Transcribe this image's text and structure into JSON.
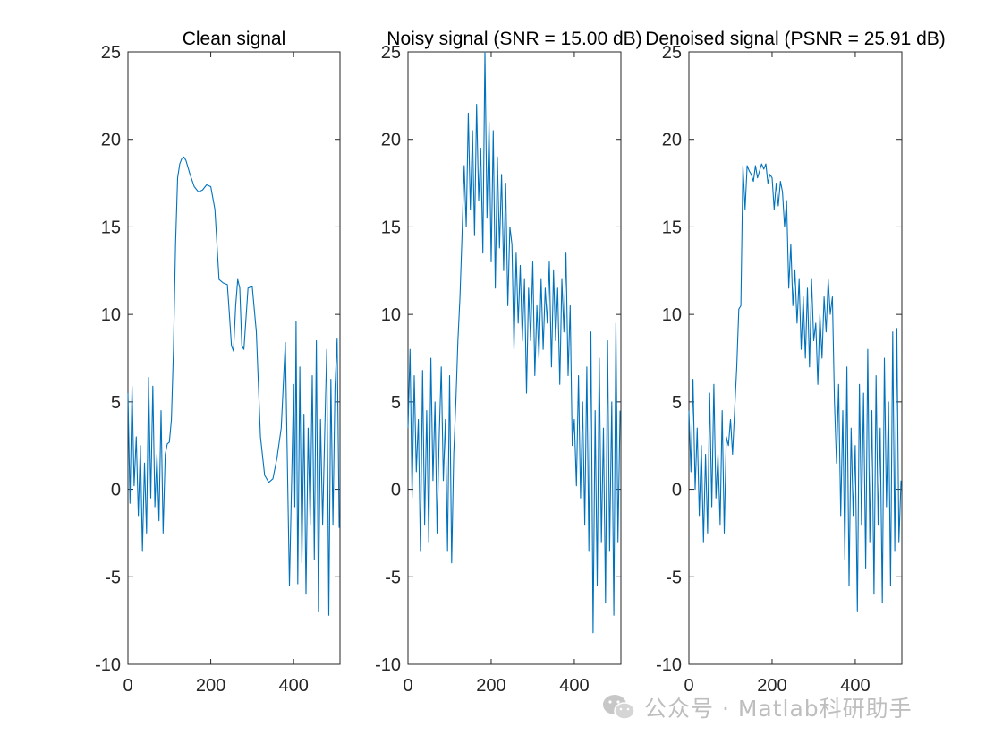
{
  "colors": {
    "series": "#0072BD",
    "axis": "#262626",
    "background": "#ffffff"
  },
  "chart_data": [
    {
      "type": "line",
      "title": "Clean signal",
      "xlim": [
        0,
        512
      ],
      "ylim": [
        -10,
        25
      ],
      "xticks": [
        0,
        200,
        400
      ],
      "yticks": [
        -10,
        -5,
        0,
        5,
        10,
        15,
        20,
        25
      ],
      "grid": false,
      "series": [
        {
          "x": [
            0,
            5,
            10,
            15,
            20,
            25,
            30,
            35,
            40,
            45,
            50,
            55,
            60,
            65,
            70,
            75,
            80,
            85,
            90,
            95,
            100,
            105,
            110,
            115,
            120,
            125,
            130,
            135,
            140,
            150,
            160,
            170,
            180,
            190,
            200,
            210,
            220,
            230,
            240,
            245,
            250,
            255,
            260,
            265,
            270,
            275,
            280,
            290,
            300,
            310,
            320,
            330,
            340,
            350,
            360,
            370,
            380,
            390,
            400,
            403,
            406,
            410,
            415,
            420,
            425,
            430,
            435,
            440,
            445,
            450,
            455,
            460,
            465,
            470,
            475,
            480,
            485,
            490,
            495,
            500,
            505,
            510
          ],
          "y": [
            5.5,
            -0.8,
            5.9,
            0.2,
            3.0,
            -1.5,
            2.5,
            -3.5,
            1.5,
            -2.5,
            6.4,
            -0.5,
            5.9,
            -1.0,
            2.0,
            -1.8,
            4.5,
            -2.5,
            2.0,
            2.6,
            2.7,
            4.0,
            8.0,
            14.0,
            17.8,
            18.6,
            18.9,
            19.0,
            18.8,
            18.0,
            17.3,
            17.0,
            17.1,
            17.4,
            17.3,
            16.0,
            12.0,
            11.8,
            11.7,
            10.0,
            8.2,
            7.9,
            10.5,
            12.0,
            11.5,
            8.2,
            8.0,
            11.5,
            11.6,
            9.0,
            3.0,
            0.8,
            0.4,
            0.6,
            1.8,
            3.5,
            8.4,
            -5.5,
            6.0,
            -1.0,
            9.6,
            -5.4,
            7.0,
            -4.2,
            4.3,
            -6.0,
            3.5,
            -2.0,
            6.5,
            -4.0,
            8.5,
            -7.0,
            4.0,
            -2.0,
            3.2,
            8.0,
            -7.2,
            6.3,
            -2.0,
            5.8,
            8.6,
            -2.2
          ]
        }
      ]
    },
    {
      "type": "line",
      "title": "Noisy signal (SNR = 15.00 dB)",
      "xlim": [
        0,
        512
      ],
      "ylim": [
        -10,
        25
      ],
      "xticks": [
        0,
        200,
        400
      ],
      "yticks": [
        -10,
        -5,
        0,
        5,
        10,
        15,
        20,
        25
      ],
      "grid": false,
      "series": [
        {
          "x": [
            0,
            5,
            10,
            15,
            20,
            25,
            30,
            35,
            40,
            45,
            50,
            55,
            60,
            65,
            70,
            75,
            80,
            85,
            90,
            95,
            100,
            105,
            110,
            115,
            120,
            125,
            130,
            135,
            140,
            145,
            150,
            155,
            160,
            165,
            170,
            175,
            180,
            185,
            190,
            195,
            200,
            205,
            210,
            215,
            220,
            225,
            230,
            235,
            240,
            245,
            250,
            255,
            260,
            265,
            270,
            275,
            280,
            285,
            290,
            295,
            300,
            305,
            310,
            315,
            320,
            325,
            330,
            335,
            340,
            345,
            350,
            355,
            360,
            365,
            370,
            375,
            380,
            385,
            390,
            395,
            400,
            405,
            410,
            415,
            420,
            425,
            430,
            435,
            440,
            445,
            450,
            455,
            460,
            465,
            470,
            475,
            480,
            485,
            490,
            495,
            500,
            505,
            510
          ],
          "y": [
            3.5,
            8.0,
            -0.5,
            6.5,
            1.0,
            4.0,
            -3.5,
            6.8,
            -2.0,
            4.5,
            -3.0,
            7.5,
            0.5,
            5.0,
            -2.5,
            3.0,
            7.0,
            0.5,
            4.0,
            -3.5,
            6.5,
            -4.2,
            2.0,
            5.0,
            8.5,
            11.0,
            14.5,
            18.5,
            15.0,
            21.5,
            16.0,
            20.5,
            14.5,
            22.0,
            16.5,
            19.5,
            13.5,
            25.0,
            15.5,
            21.0,
            13.0,
            20.5,
            11.5,
            19.0,
            13.8,
            18.0,
            12.5,
            17.5,
            10.5,
            15.0,
            14.0,
            8.0,
            13.5,
            9.5,
            12.8,
            8.5,
            12.0,
            5.5,
            11.5,
            8.5,
            13.0,
            6.5,
            10.5,
            7.5,
            12.0,
            8.0,
            11.5,
            9.5,
            13.0,
            7.0,
            12.5,
            8.5,
            11.5,
            6.0,
            12.0,
            9.0,
            13.5,
            6.5,
            10.5,
            2.5,
            4.0,
            0.2,
            6.5,
            -0.5,
            5.0,
            -2.0,
            7.0,
            -3.5,
            9.0,
            -8.2,
            4.5,
            -5.5,
            7.5,
            -3.0,
            3.5,
            -6.5,
            8.5,
            -3.5,
            5.0,
            -7.2,
            9.5,
            -3.0,
            4.5
          ]
        }
      ]
    },
    {
      "type": "line",
      "title": "Denoised signal (PSNR = 25.91 dB)",
      "xlim": [
        0,
        512
      ],
      "ylim": [
        -10,
        25
      ],
      "xticks": [
        0,
        200,
        400
      ],
      "yticks": [
        -10,
        -5,
        0,
        5,
        10,
        15,
        20,
        25
      ],
      "grid": false,
      "series": [
        {
          "x": [
            0,
            5,
            10,
            15,
            20,
            25,
            30,
            35,
            40,
            45,
            50,
            55,
            60,
            65,
            70,
            75,
            80,
            85,
            90,
            95,
            100,
            105,
            110,
            115,
            120,
            125,
            130,
            135,
            140,
            145,
            150,
            155,
            160,
            165,
            170,
            175,
            180,
            185,
            190,
            195,
            200,
            205,
            210,
            215,
            220,
            225,
            230,
            235,
            240,
            245,
            250,
            255,
            260,
            265,
            270,
            275,
            280,
            285,
            290,
            295,
            300,
            305,
            310,
            315,
            320,
            325,
            330,
            335,
            340,
            345,
            350,
            355,
            360,
            365,
            370,
            375,
            380,
            385,
            390,
            395,
            400,
            405,
            410,
            415,
            420,
            425,
            430,
            435,
            440,
            445,
            450,
            455,
            460,
            465,
            470,
            475,
            480,
            485,
            490,
            495,
            500,
            505,
            510
          ],
          "y": [
            4.5,
            1.0,
            6.3,
            0.0,
            3.5,
            -1.5,
            2.5,
            -3.0,
            2.0,
            -2.5,
            5.5,
            -1.0,
            6.0,
            -0.5,
            2.0,
            -2.0,
            4.5,
            -2.5,
            3.0,
            2.5,
            4.0,
            2.0,
            4.5,
            7.0,
            10.3,
            10.5,
            18.5,
            16.0,
            18.5,
            18.2,
            18.0,
            17.6,
            18.5,
            17.8,
            18.2,
            18.6,
            18.3,
            18.6,
            17.5,
            18.0,
            17.8,
            16.0,
            17.5,
            16.2,
            17.6,
            17.0,
            15.0,
            16.5,
            11.5,
            14.0,
            10.5,
            12.5,
            9.5,
            12.0,
            8.0,
            11.0,
            7.5,
            11.5,
            7.0,
            12.0,
            8.5,
            9.5,
            6.0,
            10.0,
            7.5,
            11.0,
            9.0,
            12.0,
            10.0,
            11.0,
            5.0,
            1.5,
            6.0,
            -1.5,
            4.5,
            -4.0,
            7.0,
            -5.5,
            3.5,
            -1.5,
            2.5,
            -7.0,
            6.0,
            -2.0,
            5.5,
            -4.5,
            8.0,
            -3.0,
            4.5,
            -6.0,
            6.5,
            -2.0,
            3.5,
            -6.5,
            7.5,
            -1.0,
            5.0,
            -5.5,
            9.0,
            -3.5,
            9.2,
            -3.0,
            0.5
          ]
        }
      ]
    }
  ],
  "watermark": {
    "icon": "wechat-icon",
    "text": "公众号 · Matlab科研助手"
  }
}
